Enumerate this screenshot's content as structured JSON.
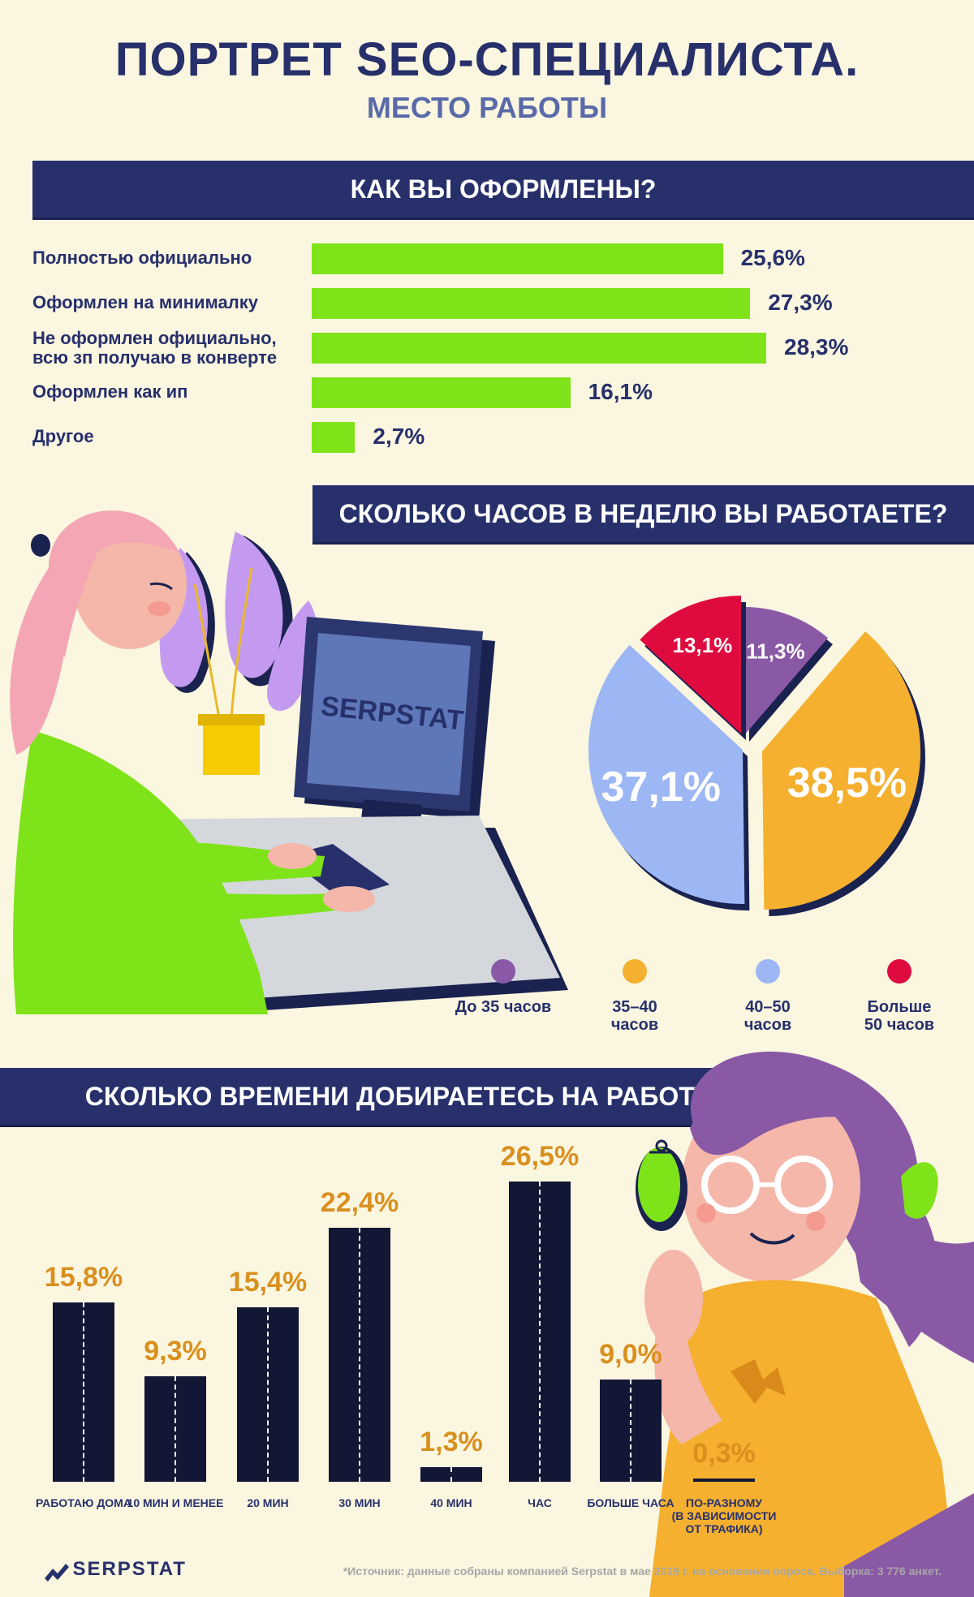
{
  "header": {
    "title": "ПОРТРЕТ SEO-СПЕЦИАЛИСТА.",
    "subtitle": "МЕСТО РАБОТЫ"
  },
  "sections": {
    "employment": "КАК ВЫ ОФОРМЛЕНЫ?",
    "hours": "СКОЛЬКО ЧАСОВ В НЕДЕЛЮ ВЫ РАБОТАЕТЕ?",
    "commute": "СКОЛЬКО ВРЕМЕНИ ДОБИРАЕТЕСЬ НА РАБОТУ?"
  },
  "illustration": {
    "monitor_brand": "SERPSTAT"
  },
  "colors": {
    "navy": "#27306b",
    "green": "#7fe31a",
    "orange": "#d9901f",
    "purple": "#8a59a5",
    "yellow": "#f4b02e",
    "blue": "#9db6f4",
    "red": "#df0b3f"
  },
  "chart_data": [
    {
      "type": "bar",
      "orientation": "horizontal",
      "title": "КАК ВЫ ОФОРМЛЕНЫ?",
      "categories": [
        "Полностью официально",
        "Оформлен на минималку",
        "Не оформлен официально, всю зп получаю в конверте",
        "Оформлен как ип",
        "Другое"
      ],
      "category_lines": [
        [
          "Полностью официально"
        ],
        [
          "Оформлен на минималку"
        ],
        [
          "Не оформлен официально,",
          "всю зп получаю в конверте"
        ],
        [
          "Оформлен как ип"
        ],
        [
          "Другое"
        ]
      ],
      "values": [
        25.6,
        27.3,
        28.3,
        16.1,
        2.7
      ],
      "value_labels": [
        "25,6%",
        "27,3%",
        "28,3%",
        "16,1%",
        "2,7%"
      ]
    },
    {
      "type": "pie",
      "title": "СКОЛЬКО ЧАСОВ В НЕДЕЛЮ ВЫ РАБОТАЕТЕ?",
      "slices": [
        {
          "label": "До 35 часов",
          "label_lines": [
            "До 35 часов"
          ],
          "value": 11.3,
          "value_label": "11,3%",
          "color": "#8a59a5"
        },
        {
          "label": "35–40 часов",
          "label_lines": [
            "35–40",
            "часов"
          ],
          "value": 38.5,
          "value_label": "38,5%",
          "color": "#f4b02e"
        },
        {
          "label": "40–50 часов",
          "label_lines": [
            "40–50",
            "часов"
          ],
          "value": 37.1,
          "value_label": "37,1%",
          "color": "#9db6f4"
        },
        {
          "label": "Больше 50 часов",
          "label_lines": [
            "Больше",
            "50 часов"
          ],
          "value": 13.1,
          "value_label": "13,1%",
          "color": "#df0b3f"
        }
      ],
      "legend": "bottom"
    },
    {
      "type": "bar",
      "orientation": "vertical",
      "title": "СКОЛЬКО ВРЕМЕНИ ДОБИРАЕТЕСЬ НА РАБОТУ?",
      "categories": [
        "РАБОТАЮ ДОМА",
        "10 МИН И МЕНЕЕ",
        "20 МИН",
        "30 МИН",
        "40 МИН",
        "ЧАС",
        "БОЛЬШЕ ЧАСА",
        "ПО-РАЗНОМУ (В ЗАВИСИМОСТИ ОТ ТРАФИКА)"
      ],
      "category_lines": [
        [
          "РАБОТАЮ ДОМА"
        ],
        [
          "10 МИН И МЕНЕЕ"
        ],
        [
          "20 МИН"
        ],
        [
          "30 МИН"
        ],
        [
          "40 МИН"
        ],
        [
          "ЧАС"
        ],
        [
          "БОЛЬШЕ ЧАСА"
        ],
        [
          "ПО-РАЗНОМУ",
          "(В ЗАВИСИМОСТИ",
          "ОТ ТРАФИКА)"
        ]
      ],
      "values": [
        15.8,
        9.3,
        15.4,
        22.4,
        1.3,
        26.5,
        9.0,
        0.3
      ],
      "value_labels": [
        "15,8%",
        "9,3%",
        "15,4%",
        "22,4%",
        "1,3%",
        "26,5%",
        "9,0%",
        "0,3%"
      ]
    }
  ],
  "footer": {
    "logo": "SERPSTAT",
    "source": "*Источник: данные собраны компанией Serpstat в мае 2019 г. на основании опроса. Выборка: 3 776 анкет."
  }
}
